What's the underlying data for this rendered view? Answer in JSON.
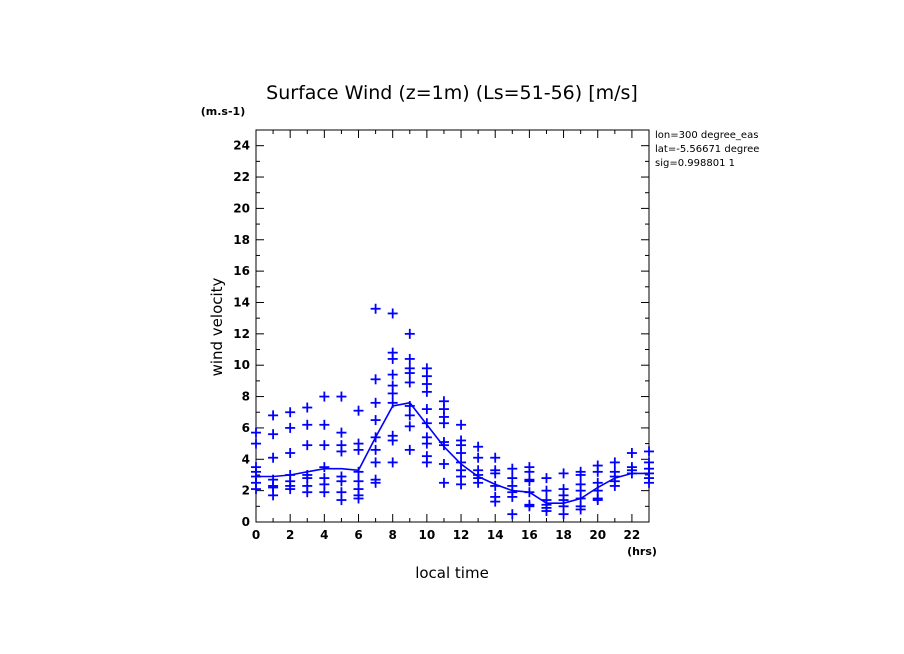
{
  "chart_data": {
    "type": "scatter",
    "title": "Surface Wind (z=1m) (Ls=51-56) [m/s]",
    "y_unit": "(m.s-1)",
    "x_unit": "(hrs)",
    "xlabel": "local time",
    "ylabel": "wind velocity",
    "xlim": [
      0,
      23
    ],
    "ylim": [
      0,
      25
    ],
    "x_ticks": [
      0,
      2,
      4,
      6,
      8,
      10,
      12,
      14,
      16,
      18,
      20,
      22
    ],
    "y_ticks": [
      0,
      2,
      4,
      6,
      8,
      10,
      12,
      14,
      16,
      18,
      20,
      22,
      24
    ],
    "grid": false,
    "annotations": [
      "lon=300 degree_eas",
      "lat=-5.56671 degree",
      "sig=0.998801 1"
    ],
    "color": "#0000ff",
    "series": [
      {
        "type": "line",
        "x": [
          0,
          1,
          2,
          3,
          4,
          5,
          6,
          7,
          8,
          9,
          10,
          11,
          12,
          13,
          14,
          15,
          16,
          17,
          18,
          19,
          20,
          21,
          22,
          23
        ],
        "y": [
          2.9,
          2.9,
          3.0,
          3.2,
          3.4,
          3.4,
          3.3,
          5.4,
          7.4,
          7.6,
          6.2,
          4.8,
          3.7,
          2.9,
          2.4,
          2.0,
          1.9,
          1.2,
          1.2,
          1.5,
          2.2,
          2.8,
          3.1,
          3.1
        ]
      },
      {
        "type": "scatter",
        "points": [
          [
            0,
            5.7
          ],
          [
            0,
            5.0
          ],
          [
            0,
            3.5
          ],
          [
            0,
            3.2
          ],
          [
            0,
            2.9
          ],
          [
            0,
            2.5
          ],
          [
            0,
            2.1
          ],
          [
            1,
            6.8
          ],
          [
            1,
            5.6
          ],
          [
            1,
            4.1
          ],
          [
            1,
            2.7
          ],
          [
            1,
            2.3
          ],
          [
            1,
            2.2
          ],
          [
            1,
            1.7
          ],
          [
            2,
            7.0
          ],
          [
            2,
            6.0
          ],
          [
            2,
            4.4
          ],
          [
            2,
            3.0
          ],
          [
            2,
            2.6
          ],
          [
            2,
            2.3
          ],
          [
            2,
            2.1
          ],
          [
            3,
            7.3
          ],
          [
            3,
            6.2
          ],
          [
            3,
            4.9
          ],
          [
            3,
            3.0
          ],
          [
            3,
            2.8
          ],
          [
            3,
            2.3
          ],
          [
            3,
            1.9
          ],
          [
            4,
            8.0
          ],
          [
            4,
            6.2
          ],
          [
            4,
            4.9
          ],
          [
            4,
            3.5
          ],
          [
            4,
            2.8
          ],
          [
            4,
            2.4
          ],
          [
            4,
            1.9
          ],
          [
            5,
            8.0
          ],
          [
            5,
            5.7
          ],
          [
            5,
            4.9
          ],
          [
            5,
            4.5
          ],
          [
            5,
            2.9
          ],
          [
            5,
            2.6
          ],
          [
            5,
            1.9
          ],
          [
            5,
            1.4
          ],
          [
            6,
            7.1
          ],
          [
            6,
            5.0
          ],
          [
            6,
            4.6
          ],
          [
            6,
            3.2
          ],
          [
            6,
            2.6
          ],
          [
            6,
            2.1
          ],
          [
            6,
            1.7
          ],
          [
            6,
            1.5
          ],
          [
            7,
            13.6
          ],
          [
            7,
            9.1
          ],
          [
            7,
            7.6
          ],
          [
            7,
            6.5
          ],
          [
            7,
            5.4
          ],
          [
            7,
            4.6
          ],
          [
            7,
            3.8
          ],
          [
            7,
            2.7
          ],
          [
            7,
            2.5
          ],
          [
            8,
            13.3
          ],
          [
            8,
            10.8
          ],
          [
            8,
            10.4
          ],
          [
            8,
            9.4
          ],
          [
            8,
            8.7
          ],
          [
            8,
            8.2
          ],
          [
            8,
            7.6
          ],
          [
            8,
            5.5
          ],
          [
            8,
            5.2
          ],
          [
            8,
            3.8
          ],
          [
            9,
            12.0
          ],
          [
            9,
            10.4
          ],
          [
            9,
            9.8
          ],
          [
            9,
            9.5
          ],
          [
            9,
            8.9
          ],
          [
            9,
            7.4
          ],
          [
            9,
            6.8
          ],
          [
            9,
            6.1
          ],
          [
            9,
            4.6
          ],
          [
            10,
            9.8
          ],
          [
            10,
            9.3
          ],
          [
            10,
            8.8
          ],
          [
            10,
            8.3
          ],
          [
            10,
            7.2
          ],
          [
            10,
            6.3
          ],
          [
            10,
            5.4
          ],
          [
            10,
            5.0
          ],
          [
            10,
            4.2
          ],
          [
            10,
            3.8
          ],
          [
            11,
            7.7
          ],
          [
            11,
            7.2
          ],
          [
            11,
            6.7
          ],
          [
            11,
            6.3
          ],
          [
            11,
            5.1
          ],
          [
            11,
            4.9
          ],
          [
            11,
            3.7
          ],
          [
            11,
            2.5
          ],
          [
            12,
            6.2
          ],
          [
            12,
            5.2
          ],
          [
            12,
            4.9
          ],
          [
            12,
            4.4
          ],
          [
            12,
            3.8
          ],
          [
            12,
            3.3
          ],
          [
            12,
            2.9
          ],
          [
            12,
            2.4
          ],
          [
            13,
            4.8
          ],
          [
            13,
            4.1
          ],
          [
            13,
            3.3
          ],
          [
            13,
            3.0
          ],
          [
            13,
            2.8
          ],
          [
            13,
            2.5
          ],
          [
            14,
            4.1
          ],
          [
            14,
            3.3
          ],
          [
            14,
            3.1
          ],
          [
            14,
            2.3
          ],
          [
            14,
            1.6
          ],
          [
            14,
            1.3
          ],
          [
            15,
            3.4
          ],
          [
            15,
            2.8
          ],
          [
            15,
            2.3
          ],
          [
            15,
            1.9
          ],
          [
            15,
            1.6
          ],
          [
            15,
            0.5
          ],
          [
            16,
            3.5
          ],
          [
            16,
            3.2
          ],
          [
            16,
            2.7
          ],
          [
            16,
            2.6
          ],
          [
            16,
            1.9
          ],
          [
            16,
            1.1
          ],
          [
            16,
            1.0
          ],
          [
            17,
            2.8
          ],
          [
            17,
            2.0
          ],
          [
            17,
            1.4
          ],
          [
            17,
            1.1
          ],
          [
            17,
            0.9
          ],
          [
            17,
            0.7
          ],
          [
            18,
            3.1
          ],
          [
            18,
            2.1
          ],
          [
            18,
            1.7
          ],
          [
            18,
            1.4
          ],
          [
            18,
            1.0
          ],
          [
            18,
            0.5
          ],
          [
            19,
            3.2
          ],
          [
            19,
            3.0
          ],
          [
            19,
            2.4
          ],
          [
            19,
            2.0
          ],
          [
            19,
            1.5
          ],
          [
            19,
            1.0
          ],
          [
            19,
            0.8
          ],
          [
            20,
            3.6
          ],
          [
            20,
            3.2
          ],
          [
            20,
            2.5
          ],
          [
            20,
            2.0
          ],
          [
            20,
            1.5
          ],
          [
            20,
            1.4
          ],
          [
            21,
            3.8
          ],
          [
            21,
            3.2
          ],
          [
            21,
            2.9
          ],
          [
            21,
            2.6
          ],
          [
            21,
            2.3
          ],
          [
            22,
            4.4
          ],
          [
            22,
            3.5
          ],
          [
            22,
            3.3
          ],
          [
            22,
            3.1
          ],
          [
            23,
            4.5
          ],
          [
            23,
            3.8
          ],
          [
            23,
            3.4
          ],
          [
            23,
            3.1
          ],
          [
            23,
            2.8
          ],
          [
            23,
            2.5
          ]
        ]
      }
    ]
  }
}
